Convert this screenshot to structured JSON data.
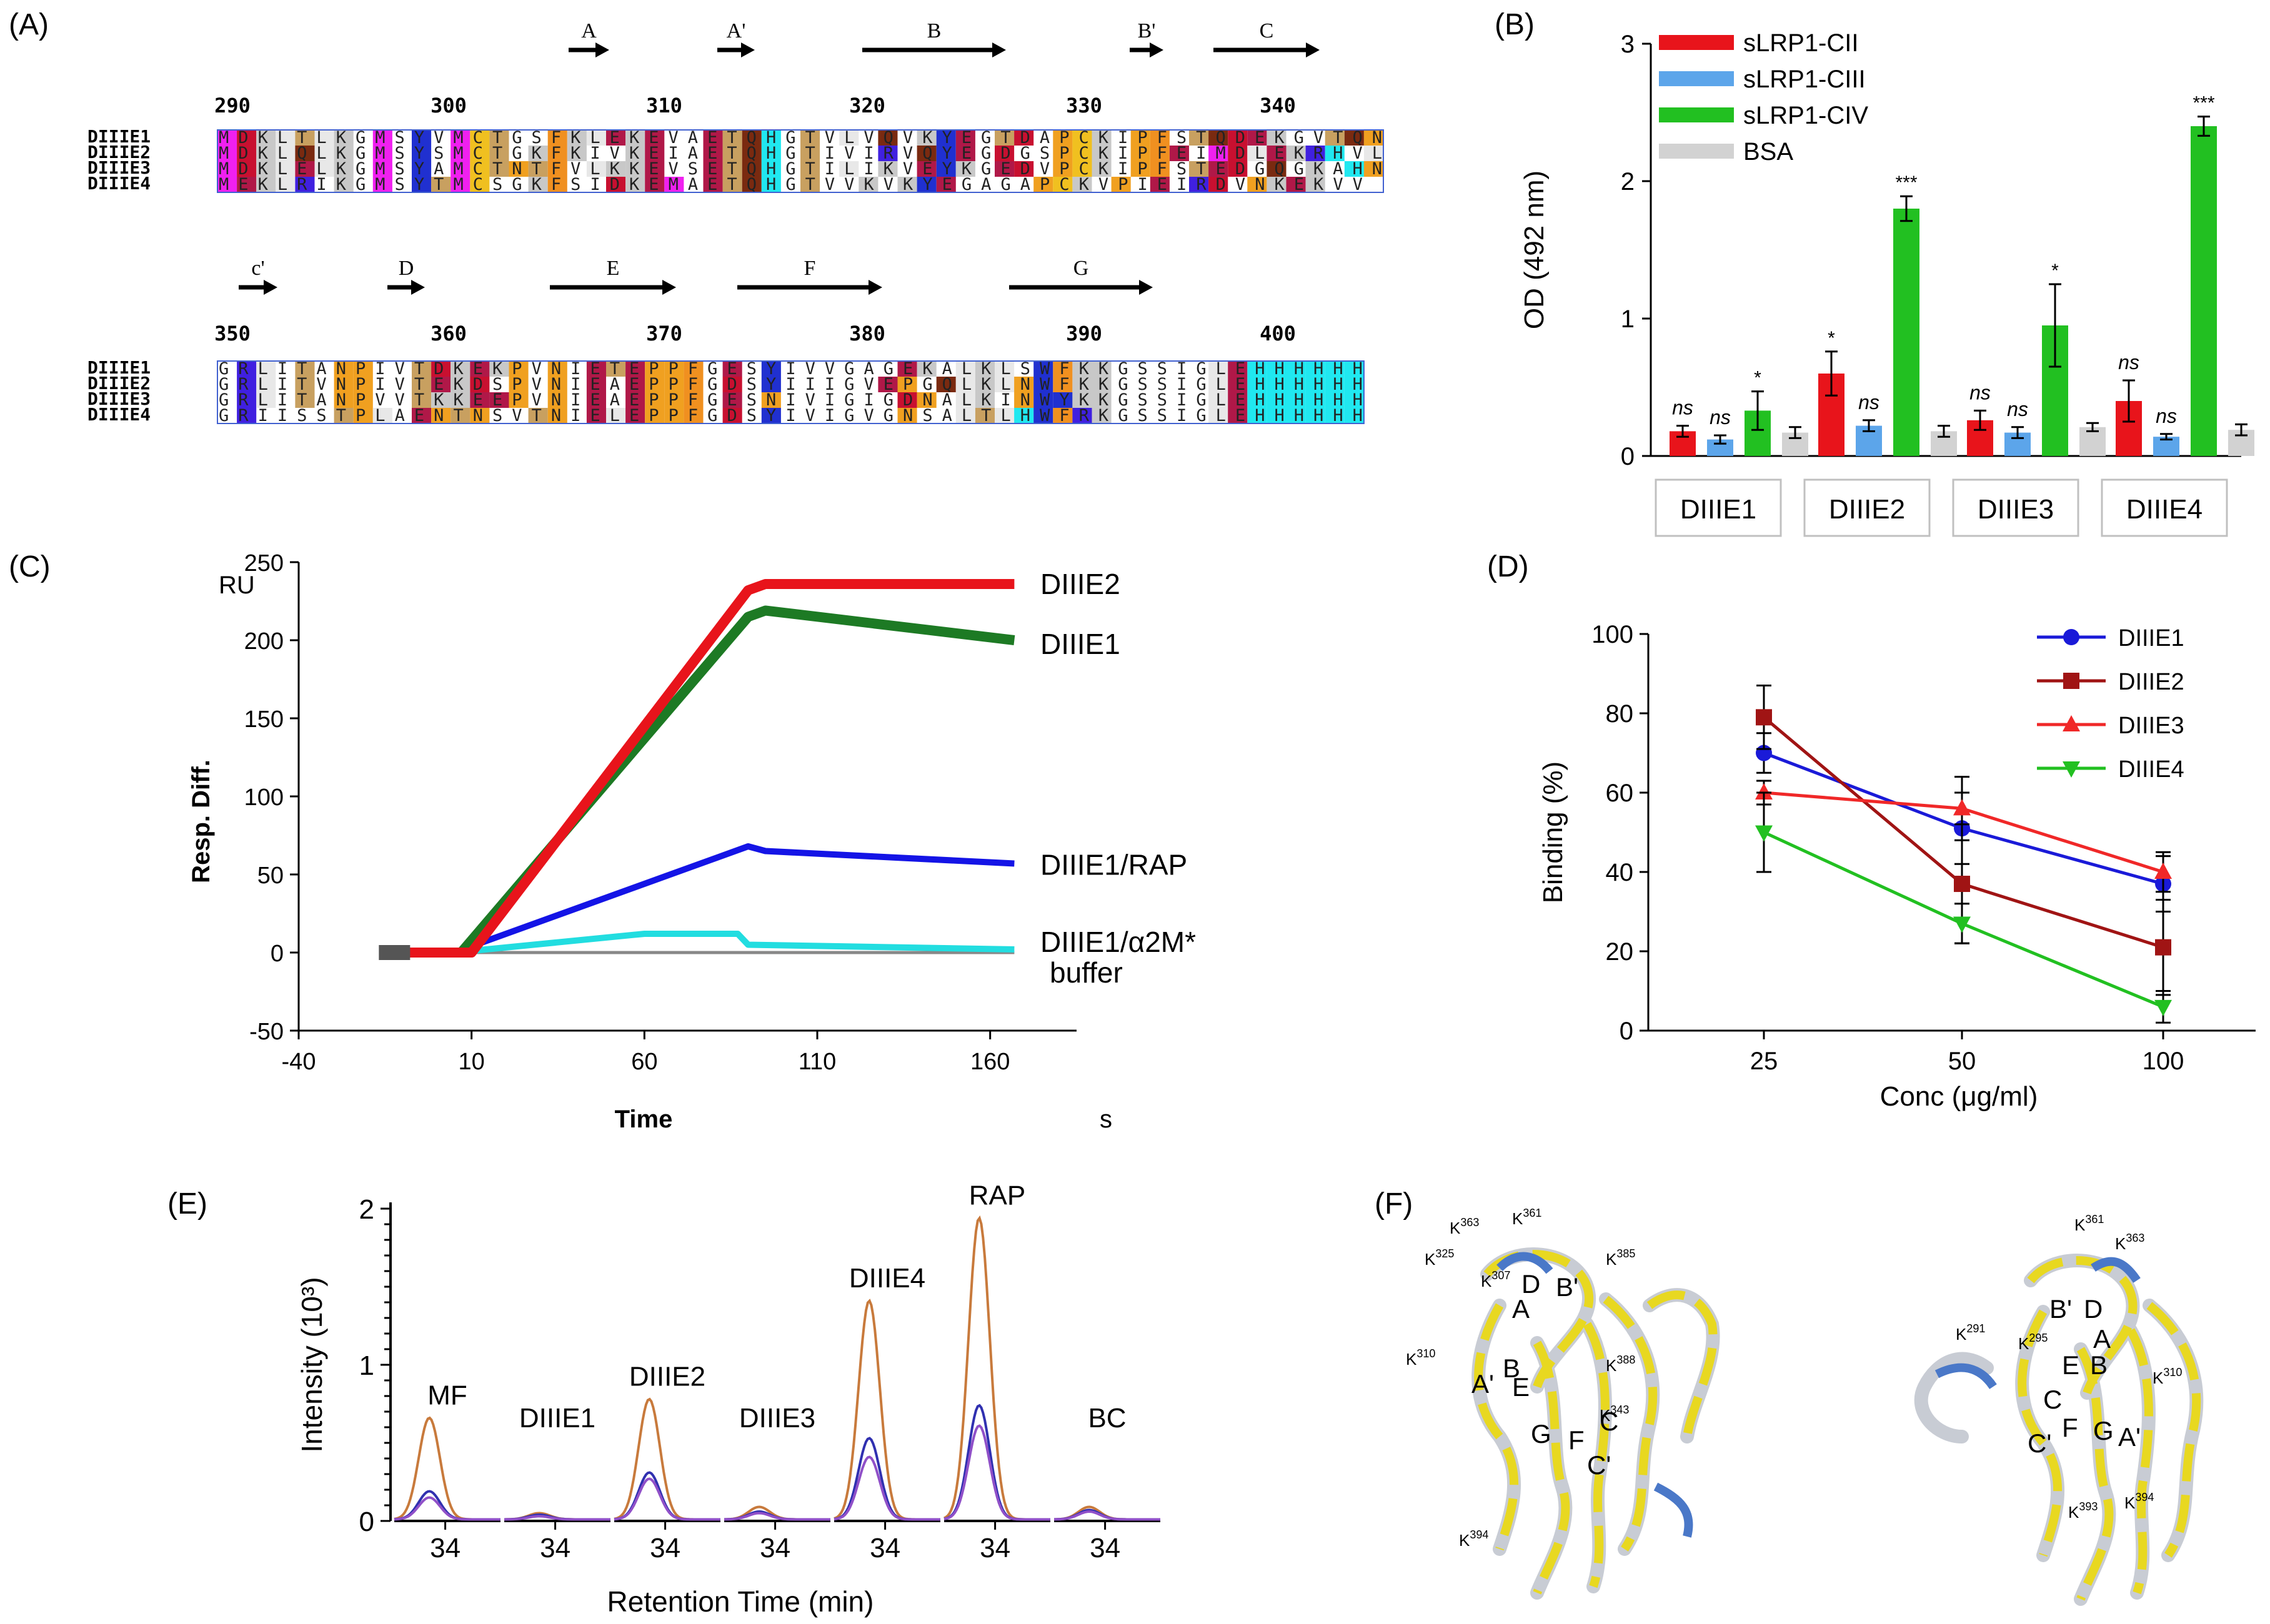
{
  "colors": {
    "red": "#e8141b",
    "blue": "#5ca5ea",
    "green": "#22c021",
    "grey": "#d2d2d2",
    "darkblue": "#1414e6",
    "darkgreen": "#1d7a24",
    "cyan": "#22dde0",
    "maroon": "#a01414",
    "orange": "#c88148",
    "purple": "#5030b8"
  },
  "panelA": {
    "label": "(A)",
    "block1": {
      "arrows": [
        "A",
        "A'",
        "B",
        "B'",
        "C"
      ],
      "numbers": [
        "290",
        "300",
        "310",
        "320",
        "330",
        "340"
      ],
      "names": [
        "DIIIE1",
        "DIIIE2",
        "DIIIE3",
        "DIIIE4"
      ],
      "seqs": [
        "MDKLTLKGMSYVMCTGSFKLEKEVAETQHGTVLVQVKYEGTDAPCKIPFSTQDEKGVTQN",
        "MDKLQLKGMSYSMCTGKFKIVKEIAETQHGTIVIRVQYEGDGSPCKIPFEIMDLEKRHVL",
        "MDKLELKGMSYAMCTNTFVLKKEVSETQHGTILIKVEYKGEDVPCKIPFSTEDGQGKAHN",
        "MEKLRIKGMSYTMCSGKFSIDKEMAETQHGTVVKVKYEGAGAPCKVPIEIRDVNKEKVV"
      ]
    },
    "block2": {
      "arrows": [
        "c'",
        "D",
        "E",
        "F",
        "G"
      ],
      "numbers": [
        "350",
        "360",
        "370",
        "380",
        "390",
        "400"
      ],
      "names": [
        "DIIIE1",
        "DIIIE2",
        "DIIIE3",
        "DIIIE4"
      ],
      "seqs": [
        "GRLITANPIVTDKEKPVNIETEPPFGESYIVVGAGEKALKLSWFKKGSSIGLEHHHHHH",
        "GRLITVNPIVTEKDSPVNIEAEPPFGDSYIIIGVEPGQLKLNWFKKGSSIGLEHHHHHH",
        "GRLITANPVVTKKEEPVNIEAEPPFGESNIVIGIGDNALKINWYKKGSSIGLEHHHHHH",
        "GRIISSTPLAENTNSVTNIELEPPFGDSYIVIGVGNSALTLHWFRKGSSIGLEHHHHHH"
      ]
    }
  },
  "panelB": {
    "label": "(B)",
    "chart_data": {
      "type": "bar",
      "ylabel": "OD (492 nm)",
      "ylim": [
        0,
        3
      ],
      "yticks": [
        "0",
        "1",
        "2",
        "3"
      ],
      "categories": [
        "DIIIE1",
        "DIIIE2",
        "DIIIE3",
        "DIIIE4"
      ],
      "series": [
        {
          "name": "sLRP1-CII",
          "values": [
            0.18,
            0.6,
            0.26,
            0.4
          ],
          "errors": [
            0.04,
            0.16,
            0.07,
            0.15
          ],
          "sig": [
            "ns",
            "*",
            "ns",
            "ns"
          ]
        },
        {
          "name": "sLRP1-CIII",
          "values": [
            0.12,
            0.22,
            0.17,
            0.14
          ],
          "errors": [
            0.03,
            0.04,
            0.04,
            0.02
          ],
          "sig": [
            "ns",
            "ns",
            "ns",
            "ns"
          ]
        },
        {
          "name": "sLRP1-CIV",
          "values": [
            0.33,
            1.8,
            0.95,
            2.4
          ],
          "errors": [
            0.14,
            0.09,
            0.3,
            0.07
          ],
          "sig": [
            "*",
            "***",
            "*",
            "***"
          ]
        },
        {
          "name": "BSA",
          "values": [
            0.17,
            0.18,
            0.21,
            0.19
          ],
          "errors": [
            0.04,
            0.04,
            0.03,
            0.04
          ],
          "sig": [
            "",
            "",
            "",
            ""
          ]
        }
      ]
    }
  },
  "panelC": {
    "label": "(C)",
    "chart_data": {
      "type": "line",
      "unit_y": "RU",
      "ylabel": "Resp. Diff.",
      "xlabel": "Time",
      "xunit": "s",
      "xlim": [
        -40,
        185
      ],
      "ylim": [
        -50,
        250
      ],
      "xticks": [
        "-40",
        "10",
        "60",
        "110",
        "160"
      ],
      "yticks": [
        "-50",
        "0",
        "50",
        "100",
        "150",
        "200",
        "250"
      ],
      "series": [
        {
          "name": "DIIIE2",
          "x": [
            -15,
            10,
            90,
            95,
            167
          ],
          "y": [
            0,
            0,
            232,
            236,
            236
          ]
        },
        {
          "name": "DIIIE1",
          "x": [
            -15,
            7,
            90,
            95,
            167
          ],
          "y": [
            0,
            0,
            215,
            219,
            200
          ]
        },
        {
          "name": "DIIIE1/RAP",
          "x": [
            -15,
            5,
            90,
            95,
            167
          ],
          "y": [
            0,
            0,
            68,
            65,
            57
          ]
        },
        {
          "name": "DIIIE1/α2M*",
          "x": [
            -15,
            5,
            60,
            87,
            90,
            167
          ],
          "y": [
            0,
            0,
            12,
            12,
            5,
            2
          ]
        },
        {
          "name": "buffer",
          "x": [
            -15,
            167
          ],
          "y": [
            0,
            0
          ]
        }
      ]
    }
  },
  "panelD": {
    "label": "(D)",
    "chart_data": {
      "type": "line",
      "xlabel": "Conc (μg/ml)",
      "ylabel": "Binding (%)",
      "categories": [
        "25",
        "50",
        "100"
      ],
      "ylim": [
        0,
        100
      ],
      "yticks": [
        "0",
        "20",
        "40",
        "60",
        "80",
        "100"
      ],
      "series": [
        {
          "name": "DIIIE1",
          "values": [
            70,
            51,
            37
          ],
          "errors": [
            5,
            9,
            7
          ]
        },
        {
          "name": "DIIIE2",
          "values": [
            79,
            37,
            21
          ],
          "errors": [
            8,
            15,
            12
          ]
        },
        {
          "name": "DIIIE3",
          "values": [
            60,
            56,
            40
          ],
          "errors": [
            3,
            8,
            5
          ]
        },
        {
          "name": "DIIIE4",
          "values": [
            50,
            27,
            6
          ],
          "errors": [
            10,
            5,
            4
          ]
        }
      ]
    }
  },
  "panelE": {
    "label": "(E)",
    "chart_data": {
      "type": "line",
      "xlabel": "Retention Time (min)",
      "ylabel": "Intensity (10³)",
      "ylim": [
        0,
        2
      ],
      "yticks": [
        "0",
        "1",
        "2"
      ],
      "xtick": "34",
      "segments": [
        {
          "name": "MF",
          "peaks": [
            0.65,
            0.18,
            0.14
          ]
        },
        {
          "name": "DIIIE1",
          "peaks": [
            0.04,
            0.03,
            0.02
          ]
        },
        {
          "name": "DIIIE2",
          "peaks": [
            0.77,
            0.3,
            0.26
          ]
        },
        {
          "name": "DIIIE3",
          "peaks": [
            0.08,
            0.05,
            0.04
          ]
        },
        {
          "name": "DIIIE4",
          "peaks": [
            1.4,
            0.52,
            0.4
          ]
        },
        {
          "name": "RAP",
          "peaks": [
            1.93,
            0.73,
            0.6
          ]
        },
        {
          "name": "BC",
          "peaks": [
            0.08,
            0.06,
            0.05
          ]
        }
      ]
    }
  },
  "panelF": {
    "label": "(F)",
    "left_labels": [
      "K361",
      "K363",
      "K325",
      "K385",
      "K307",
      "D",
      "B'",
      "A",
      "K310",
      "A'",
      "B",
      "E",
      "K388",
      "K343",
      "G",
      "F",
      "C",
      "C'",
      "K394"
    ],
    "right_labels": [
      "K361",
      "K363",
      "K291",
      "K295",
      "B'",
      "D",
      "A",
      "E",
      "B",
      "K310",
      "C",
      "C'",
      "F",
      "G",
      "A'",
      "K393",
      "K394"
    ]
  }
}
